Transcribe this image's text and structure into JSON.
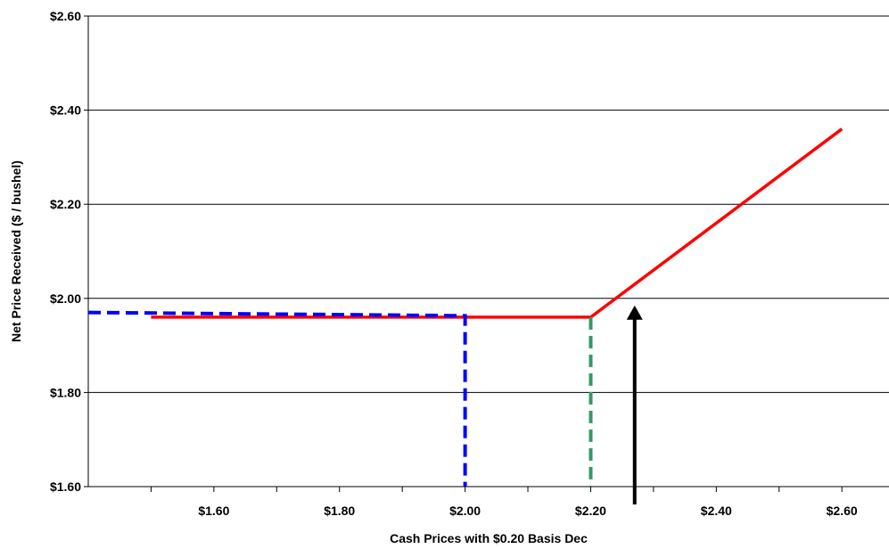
{
  "chart_data": {
    "type": "line",
    "title": "",
    "xlabel": "Cash Prices with $0.20 Basis Dec",
    "ylabel": "Net Price Received ($ / bushel)",
    "xlim": [
      1.4,
      2.675
    ],
    "ylim": [
      1.6,
      2.6
    ],
    "x_ticks": [
      1.6,
      1.8,
      2.0,
      2.2,
      2.4,
      2.6
    ],
    "x_tick_labels": [
      "$1.60",
      "$1.80",
      "$2.00",
      "$2.20",
      "$2.40",
      "$2.60"
    ],
    "y_ticks": [
      1.6,
      1.8,
      2.0,
      2.2,
      2.4,
      2.6
    ],
    "y_tick_labels": [
      "$1.60",
      "$1.80",
      "$2.00",
      "$2.20",
      "$2.40",
      "$2.60"
    ],
    "grid": "horizontal",
    "legend": "none",
    "series": [
      {
        "style": "solid",
        "color": "#ff0000",
        "points": [
          [
            1.5,
            1.96
          ],
          [
            2.2,
            1.96
          ],
          [
            2.6,
            2.36
          ]
        ]
      },
      {
        "style": "dashed",
        "color": "#0000ff",
        "points": [
          [
            1.4,
            1.97
          ],
          [
            2.0,
            1.963
          ],
          [
            2.0,
            1.6
          ]
        ]
      },
      {
        "style": "dashed",
        "color": "#339966",
        "points": [
          [
            2.2,
            1.96
          ],
          [
            2.2,
            1.6
          ]
        ]
      }
    ],
    "annotations": [
      {
        "type": "arrow",
        "color": "#000000",
        "direction": "up",
        "from": [
          2.27,
          1.6
        ],
        "to": [
          2.27,
          1.985
        ]
      }
    ]
  }
}
